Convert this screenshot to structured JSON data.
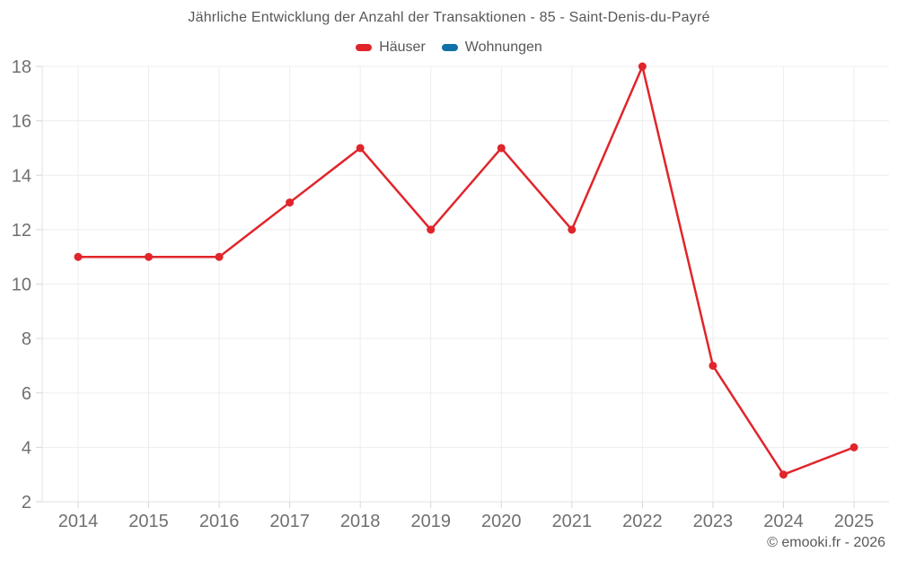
{
  "title": "Jährliche Entwicklung der Anzahl der Transaktionen - 85 - Saint-Denis-du-Payré",
  "footer": {
    "copyright": "© emooki.fr - 2026"
  },
  "chart_data": {
    "type": "line",
    "title": "Jährliche Entwicklung der Anzahl der Transaktionen - 85 - Saint-Denis-du-Payré",
    "categories": [
      "2014",
      "2015",
      "2016",
      "2017",
      "2018",
      "2019",
      "2020",
      "2021",
      "2022",
      "2023",
      "2024",
      "2025"
    ],
    "series": [
      {
        "name": "Häuser",
        "color": "#e0252b",
        "values": [
          11,
          11,
          11,
          13,
          15,
          12,
          15,
          12,
          18,
          7,
          3,
          4
        ]
      },
      {
        "name": "Wohnungen",
        "color": "#0f72a6",
        "values": []
      }
    ],
    "xlabel": "",
    "ylabel": "",
    "ylim": [
      2,
      18
    ],
    "ytick_step": 2,
    "grid": true,
    "legend_position": "top-center",
    "marker": "circle"
  }
}
